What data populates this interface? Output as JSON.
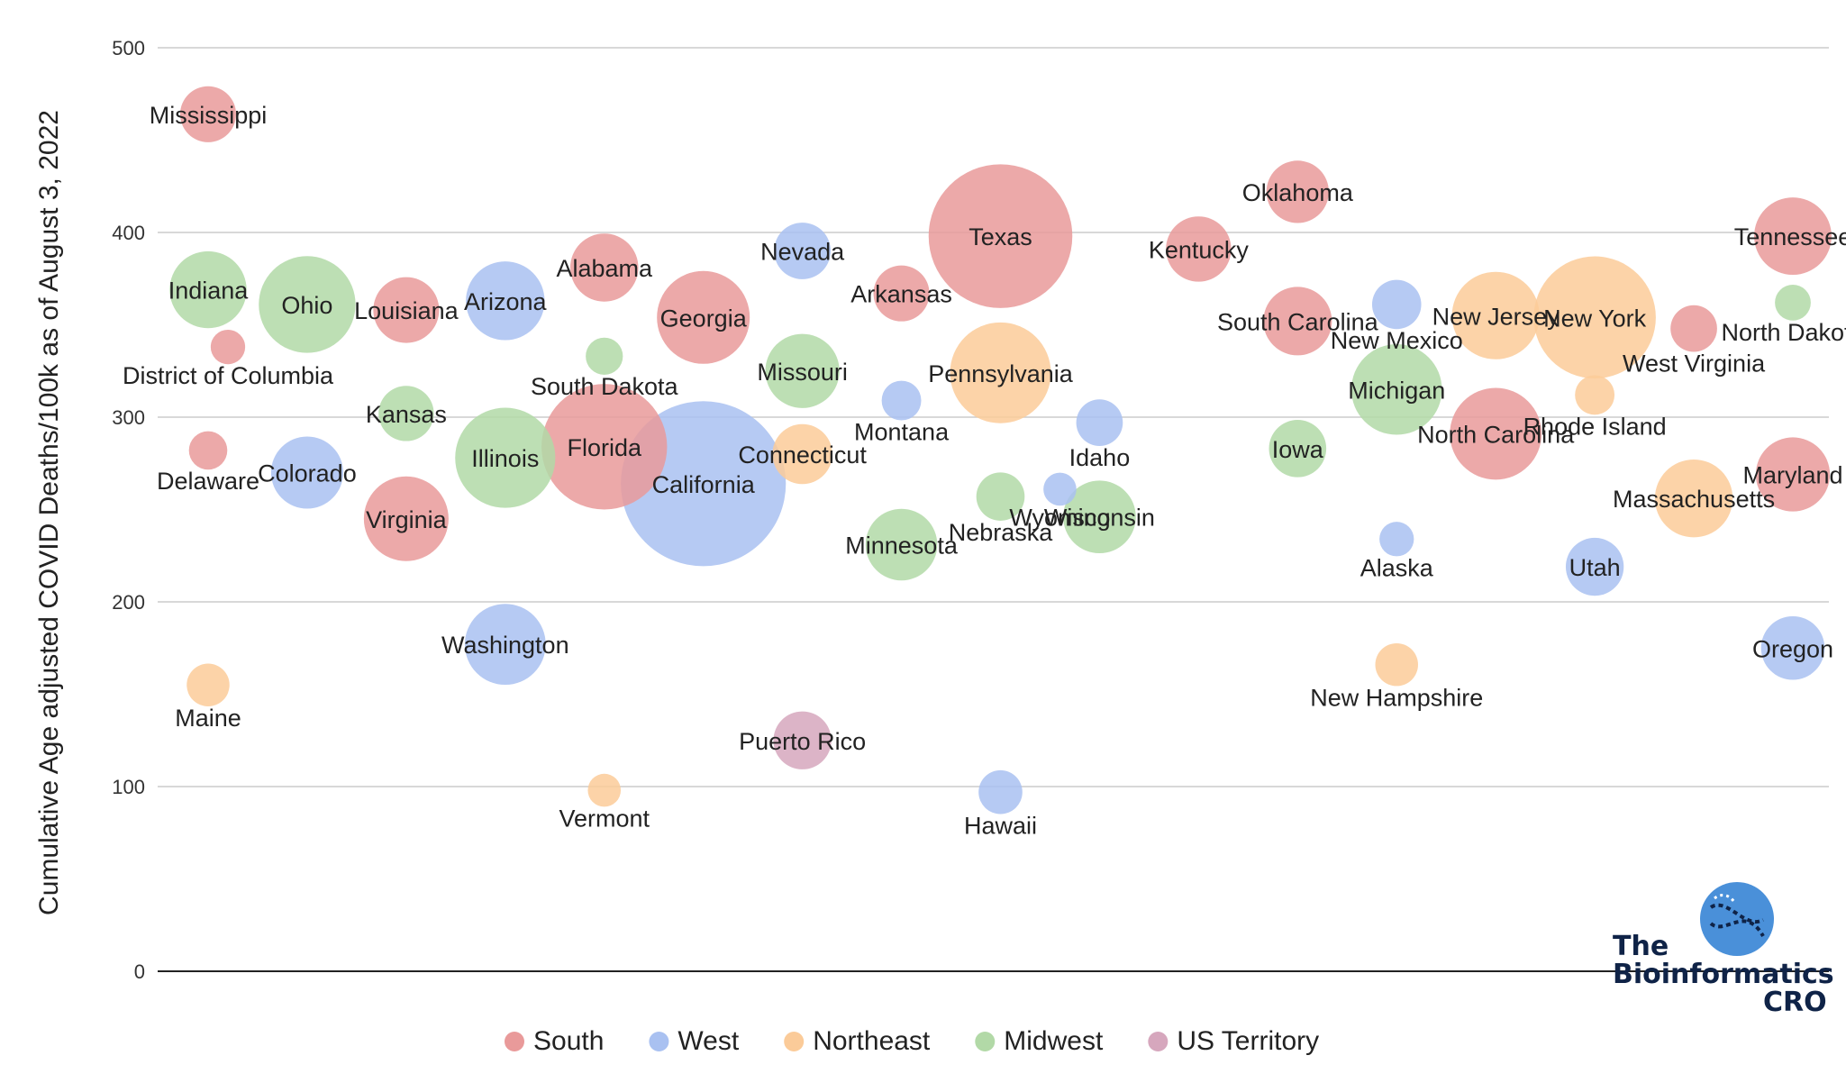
{
  "chart_data": {
    "type": "bubble",
    "ylabel": "Cumulative Age adjusted COVID Deaths/100k as of August 3, 2022",
    "ylim": [
      0,
      500
    ],
    "yticks": [
      0,
      100,
      200,
      300,
      400,
      500
    ],
    "x_ticks_shown": false,
    "grid": true,
    "legend_position": "bottom",
    "series": [
      {
        "name": "South",
        "color": "#e99a9a"
      },
      {
        "name": "West",
        "color": "#a9c1f1"
      },
      {
        "name": "Northeast",
        "color": "#fbcb99"
      },
      {
        "name": "Midwest",
        "color": "#b2d9a7"
      },
      {
        "name": "US Territory",
        "color": "#d6a7bd"
      }
    ],
    "points": [
      {
        "label": "Mississippi",
        "region": "South",
        "x": 1,
        "y": 464,
        "size": 3.0
      },
      {
        "label": "Indiana",
        "region": "Midwest",
        "x": 1,
        "y": 369,
        "size": 6.8
      },
      {
        "label": "Delaware",
        "region": "South",
        "x": 1,
        "y": 282,
        "size": 1.0
      },
      {
        "label": "Maine",
        "region": "Northeast",
        "x": 1,
        "y": 155,
        "size": 1.4
      },
      {
        "label": "District of Columbia",
        "region": "South",
        "x": 1.2,
        "y": 338,
        "size": 0.7
      },
      {
        "label": "Ohio",
        "region": "Midwest",
        "x": 2,
        "y": 361,
        "size": 11.8
      },
      {
        "label": "Colorado",
        "region": "West",
        "x": 2,
        "y": 270,
        "size": 5.8
      },
      {
        "label": "Louisiana",
        "region": "South",
        "x": 3,
        "y": 358,
        "size": 4.6
      },
      {
        "label": "Kansas",
        "region": "Midwest",
        "x": 3,
        "y": 302,
        "size": 2.9
      },
      {
        "label": "Virginia",
        "region": "South",
        "x": 3,
        "y": 245,
        "size": 8.6
      },
      {
        "label": "Arizona",
        "region": "West",
        "x": 4,
        "y": 363,
        "size": 7.2
      },
      {
        "label": "Illinois",
        "region": "Midwest",
        "x": 4,
        "y": 278,
        "size": 12.8
      },
      {
        "label": "Washington",
        "region": "West",
        "x": 4,
        "y": 177,
        "size": 7.7
      },
      {
        "label": "Alabama",
        "region": "South",
        "x": 5,
        "y": 381,
        "size": 5.0
      },
      {
        "label": "South Dakota",
        "region": "Midwest",
        "x": 5,
        "y": 333,
        "size": 0.9
      },
      {
        "label": "Florida",
        "region": "South",
        "x": 5,
        "y": 284,
        "size": 21.5
      },
      {
        "label": "Vermont",
        "region": "Northeast",
        "x": 5,
        "y": 98,
        "size": 0.6
      },
      {
        "label": "Georgia",
        "region": "South",
        "x": 6,
        "y": 354,
        "size": 10.7
      },
      {
        "label": "California",
        "region": "West",
        "x": 6,
        "y": 264,
        "size": 39.5
      },
      {
        "label": "Nevada",
        "region": "West",
        "x": 7,
        "y": 390,
        "size": 3.1
      },
      {
        "label": "Missouri",
        "region": "Midwest",
        "x": 7,
        "y": 325,
        "size": 6.2
      },
      {
        "label": "Connecticut",
        "region": "Northeast",
        "x": 7,
        "y": 280,
        "size": 3.6
      },
      {
        "label": "Puerto Rico",
        "region": "US Territory",
        "x": 7,
        "y": 125,
        "size": 3.3
      },
      {
        "label": "Arkansas",
        "region": "South",
        "x": 8,
        "y": 367,
        "size": 3.0
      },
      {
        "label": "Montana",
        "region": "West",
        "x": 8,
        "y": 309,
        "size": 1.1
      },
      {
        "label": "Minnesota",
        "region": "Midwest",
        "x": 8,
        "y": 231,
        "size": 5.7
      },
      {
        "label": "Texas",
        "region": "South",
        "x": 9,
        "y": 398,
        "size": 29.1
      },
      {
        "label": "Pennsylvania",
        "region": "Northeast",
        "x": 9,
        "y": 324,
        "size": 13.0
      },
      {
        "label": "Nebraska",
        "region": "Midwest",
        "x": 9,
        "y": 257,
        "size": 2.0
      },
      {
        "label": "Hawaii",
        "region": "West",
        "x": 9,
        "y": 97,
        "size": 1.5
      },
      {
        "label": "Wyoming",
        "region": "West",
        "x": 9.6,
        "y": 261,
        "size": 0.6
      },
      {
        "label": "Idaho",
        "region": "West",
        "x": 10,
        "y": 297,
        "size": 1.8
      },
      {
        "label": "Wisconsin",
        "region": "Midwest",
        "x": 10,
        "y": 246,
        "size": 5.9
      },
      {
        "label": "Kentucky",
        "region": "South",
        "x": 11,
        "y": 391,
        "size": 4.5
      },
      {
        "label": "Oklahoma",
        "region": "South",
        "x": 12,
        "y": 422,
        "size": 4.0
      },
      {
        "label": "South Carolina",
        "region": "South",
        "x": 12,
        "y": 352,
        "size": 5.1
      },
      {
        "label": "Iowa",
        "region": "Midwest",
        "x": 12,
        "y": 283,
        "size": 3.2
      },
      {
        "label": "New Mexico",
        "region": "West",
        "x": 13,
        "y": 361,
        "size": 2.1
      },
      {
        "label": "Michigan",
        "region": "Midwest",
        "x": 13,
        "y": 315,
        "size": 10.1
      },
      {
        "label": "Alaska",
        "region": "West",
        "x": 13,
        "y": 234,
        "size": 0.7
      },
      {
        "label": "New Hampshire",
        "region": "Northeast",
        "x": 13,
        "y": 166,
        "size": 1.4
      },
      {
        "label": "New Jersey",
        "region": "Northeast",
        "x": 14,
        "y": 355,
        "size": 9.3
      },
      {
        "label": "North Carolina",
        "region": "South",
        "x": 14,
        "y": 291,
        "size": 10.4
      },
      {
        "label": "New York",
        "region": "Northeast",
        "x": 15,
        "y": 354,
        "size": 20.2
      },
      {
        "label": "Rhode Island",
        "region": "Northeast",
        "x": 15,
        "y": 312,
        "size": 1.1
      },
      {
        "label": "Utah",
        "region": "West",
        "x": 15,
        "y": 219,
        "size": 3.3
      },
      {
        "label": "West Virginia",
        "region": "South",
        "x": 16,
        "y": 348,
        "size": 1.8
      },
      {
        "label": "Massachusetts",
        "region": "Northeast",
        "x": 16,
        "y": 256,
        "size": 7.0
      },
      {
        "label": "Tennessee",
        "region": "South",
        "x": 17,
        "y": 398,
        "size": 6.9
      },
      {
        "label": "North Dakota",
        "region": "Midwest",
        "x": 17,
        "y": 362,
        "size": 0.8
      },
      {
        "label": "Maryland",
        "region": "South",
        "x": 17,
        "y": 269,
        "size": 6.2
      },
      {
        "label": "Oregon",
        "region": "West",
        "x": 17,
        "y": 175,
        "size": 4.2
      }
    ]
  },
  "logo": {
    "line1": "The",
    "line2": "Bioinformatics",
    "line3": "CRO",
    "accent": "#4a90d9"
  }
}
